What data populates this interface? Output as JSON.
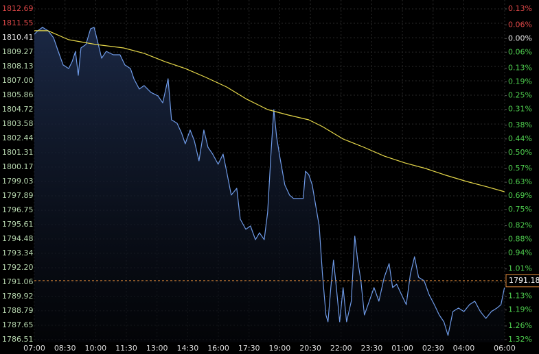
{
  "chart_data": {
    "type": "line",
    "xlim": [
      0,
      23
    ],
    "xticks": [
      {
        "value": 0,
        "label": "07:00"
      },
      {
        "value": 1.5,
        "label": "08:30"
      },
      {
        "value": 3,
        "label": "10:00"
      },
      {
        "value": 4.5,
        "label": "11:30"
      },
      {
        "value": 6,
        "label": "13:00"
      },
      {
        "value": 7.5,
        "label": "14:30"
      },
      {
        "value": 9,
        "label": "16:00"
      },
      {
        "value": 10.5,
        "label": "17:30"
      },
      {
        "value": 12,
        "label": "19:00"
      },
      {
        "value": 13.5,
        "label": "20:30"
      },
      {
        "value": 15,
        "label": "22:00"
      },
      {
        "value": 16.5,
        "label": "23:30"
      },
      {
        "value": 18,
        "label": "01:00"
      },
      {
        "value": 19.5,
        "label": "02:30"
      },
      {
        "value": 21,
        "label": "04:00"
      },
      {
        "value": 23,
        "label": "06:00"
      }
    ],
    "ylim": [
      1786.51,
      1812.69
    ],
    "yticks": [
      1812.69,
      1811.55,
      1810.41,
      1809.27,
      1808.13,
      {
        "value": 1807.0,
        "label": "1807.00"
      },
      1805.86,
      1804.72,
      1803.58,
      1802.44,
      1801.31,
      1800.17,
      1799.03,
      1797.89,
      1796.75,
      1795.61,
      1794.48,
      1793.34,
      {
        "value": 1792.2,
        "label": "1792.20"
      },
      1791.06,
      1789.92,
      1788.79,
      1787.65,
      1786.51
    ],
    "y2lim": [
      -1.32,
      0.13
    ],
    "y2ticks": [
      {
        "value": 0.13,
        "label": "0.13%"
      },
      {
        "value": 0.06,
        "label": "0.06%"
      },
      {
        "value": 0,
        "label": "0.00%"
      },
      {
        "value": -0.06,
        "label": "0.06%"
      },
      {
        "value": -0.13,
        "label": "0.13%"
      },
      {
        "value": -0.19,
        "label": "0.19%"
      },
      {
        "value": -0.25,
        "label": "0.25%"
      },
      {
        "value": -0.31,
        "label": "0.31%"
      },
      {
        "value": -0.38,
        "label": "0.38%"
      },
      {
        "value": -0.44,
        "label": "0.44%"
      },
      {
        "value": -0.5,
        "label": "0.50%"
      },
      {
        "value": -0.57,
        "label": "0.57%"
      },
      {
        "value": -0.63,
        "label": "0.63%"
      },
      {
        "value": -0.69,
        "label": "0.69%"
      },
      {
        "value": -0.75,
        "label": "0.75%"
      },
      {
        "value": -0.82,
        "label": "0.82%"
      },
      {
        "value": -0.88,
        "label": "0.88%"
      },
      {
        "value": -0.94,
        "label": "0.94%"
      },
      {
        "value": -1.01,
        "label": "1.01%"
      },
      {
        "value": -1.07,
        "label": "1.07%"
      },
      {
        "value": -1.13,
        "label": "1.13%"
      },
      {
        "value": -1.19,
        "label": "1.19%"
      },
      {
        "value": -1.26,
        "label": "1.26%"
      },
      {
        "value": -1.32,
        "label": "1.32%"
      }
    ],
    "grid": true,
    "last_price": 1791.18,
    "series": [
      {
        "color": "#6f9be8",
        "x": [
          0,
          0.17,
          0.4,
          0.67,
          0.94,
          1.17,
          1.41,
          1.68,
          1.85,
          2.01,
          2.15,
          2.28,
          2.52,
          2.75,
          2.92,
          3.09,
          3.29,
          3.52,
          3.86,
          4.19,
          4.43,
          4.7,
          4.87,
          5.13,
          5.37,
          5.7,
          6.04,
          6.28,
          6.54,
          6.71,
          6.98,
          7.21,
          7.38,
          7.62,
          7.82,
          8.05,
          8.29,
          8.49,
          8.72,
          8.99,
          9.23,
          9.4,
          9.63,
          9.9,
          10.07,
          10.34,
          10.57,
          10.81,
          11.01,
          11.24,
          11.41,
          11.58,
          11.71,
          11.85,
          12.01,
          12.25,
          12.48,
          12.68,
          12.92,
          13.15,
          13.26,
          13.42,
          13.59,
          13.76,
          13.93,
          14.09,
          14.26,
          14.36,
          14.5,
          14.63,
          14.77,
          14.93,
          15.1,
          15.27,
          15.5,
          15.67,
          15.81,
          15.97,
          16.14,
          16.38,
          16.61,
          16.85,
          17.11,
          17.35,
          17.52,
          17.72,
          17.95,
          18.19,
          18.39,
          18.59,
          18.79,
          19.06,
          19.3,
          19.56,
          19.8,
          20.03,
          20.23,
          20.47,
          20.74,
          21.01,
          21.28,
          21.54,
          21.81,
          22.08,
          22.35,
          22.62,
          22.82,
          22.99
        ],
        "values": [
          1810.69,
          1810.96,
          1811.23,
          1810.96,
          1810.41,
          1809.33,
          1808.25,
          1807.97,
          1808.52,
          1809.33,
          1807.43,
          1809.6,
          1809.87,
          1811.12,
          1811.23,
          1810.14,
          1808.79,
          1809.33,
          1809.06,
          1809.06,
          1808.25,
          1807.97,
          1807.16,
          1806.35,
          1806.62,
          1806.08,
          1805.81,
          1805.26,
          1807.16,
          1803.91,
          1803.64,
          1802.83,
          1802.01,
          1803.1,
          1802.28,
          1800.66,
          1803.1,
          1801.74,
          1801.2,
          1800.39,
          1801.2,
          1799.84,
          1797.95,
          1798.49,
          1796.05,
          1795.24,
          1795.51,
          1794.42,
          1794.97,
          1794.42,
          1796.59,
          1801.47,
          1804.72,
          1802.55,
          1800.93,
          1798.76,
          1797.95,
          1797.68,
          1797.68,
          1797.68,
          1799.84,
          1799.57,
          1798.76,
          1797.13,
          1795.51,
          1791.71,
          1788.46,
          1787.92,
          1790.63,
          1792.8,
          1790.63,
          1787.92,
          1790.63,
          1787.92,
          1789.55,
          1794.7,
          1792.8,
          1791.17,
          1788.46,
          1789.55,
          1790.63,
          1789.55,
          1791.44,
          1792.53,
          1790.63,
          1790.9,
          1790.09,
          1789.28,
          1791.71,
          1793.07,
          1791.44,
          1791.17,
          1790.09,
          1789.28,
          1788.46,
          1787.92,
          1786.84,
          1788.73,
          1789.01,
          1788.73,
          1789.28,
          1789.55,
          1788.73,
          1788.19,
          1788.73,
          1789.01,
          1789.28,
          1790.63
        ]
      },
      {
        "color": "#e6d84a",
        "x": [
          0,
          0.67,
          1.68,
          3.02,
          4.36,
          5.37,
          6.38,
          7.38,
          8.39,
          9.4,
          10.4,
          11.41,
          12.42,
          13.42,
          14.09,
          15.1,
          16.11,
          17.11,
          18.12,
          19.13,
          20.13,
          21.14,
          22.15,
          22.99
        ],
        "values": [
          1810.96,
          1810.96,
          1810.25,
          1809.87,
          1809.6,
          1809.17,
          1808.52,
          1807.97,
          1807.27,
          1806.51,
          1805.53,
          1804.72,
          1804.29,
          1803.91,
          1803.37,
          1802.39,
          1801.74,
          1801.04,
          1800.5,
          1800.06,
          1799.52,
          1799.03,
          1798.6,
          1798.22
        ]
      }
    ]
  }
}
